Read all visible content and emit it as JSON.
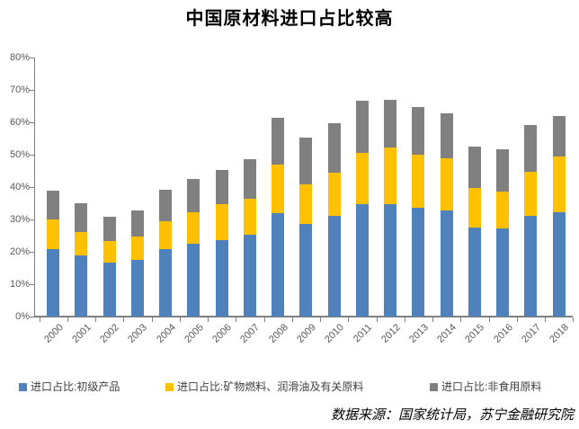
{
  "chart_data": {
    "type": "bar",
    "stacked": true,
    "title": "中国原材料进口占比较高",
    "source_note": "数据来源：国家统计局，苏宁金融研究院",
    "categories": [
      "2000",
      "2001",
      "2002",
      "2003",
      "2004",
      "2005",
      "2006",
      "2007",
      "2008",
      "2009",
      "2010",
      "2011",
      "2012",
      "2013",
      "2014",
      "2015",
      "2016",
      "2017",
      "2018"
    ],
    "series": [
      {
        "name": "进口占比:初级产品",
        "color": "#4F81BD",
        "values": [
          20.8,
          18.8,
          16.7,
          17.6,
          20.9,
          22.4,
          23.6,
          25.4,
          32.0,
          28.6,
          31.0,
          34.6,
          34.8,
          33.6,
          32.7,
          27.6,
          27.2,
          31.1,
          32.3
        ]
      },
      {
        "name": "进口占比:矿物燃料、润滑油及有关原料",
        "color": "#FFC000",
        "values": [
          9.2,
          7.2,
          6.5,
          7.1,
          8.5,
          9.7,
          11.2,
          11.1,
          14.9,
          12.2,
          13.5,
          16.0,
          17.5,
          16.4,
          16.3,
          12.1,
          11.4,
          13.7,
          17.1
        ]
      },
      {
        "name": "进口占比:非食用原料",
        "color": "#808080",
        "values": [
          8.8,
          9.0,
          7.6,
          8.2,
          9.9,
          10.5,
          10.6,
          12.2,
          14.6,
          14.5,
          15.3,
          16.2,
          14.7,
          14.6,
          13.9,
          12.9,
          13.0,
          14.3,
          12.5
        ]
      }
    ],
    "ylim": [
      0,
      80
    ],
    "y_tick_step": 10,
    "y_tick_labels": [
      "0%",
      "10%",
      "20%",
      "30%",
      "40%",
      "50%",
      "60%",
      "70%",
      "80%"
    ],
    "grid": false,
    "legend_position": "bottom",
    "axis_color": "#808080",
    "tick_label_color": "#595959"
  }
}
